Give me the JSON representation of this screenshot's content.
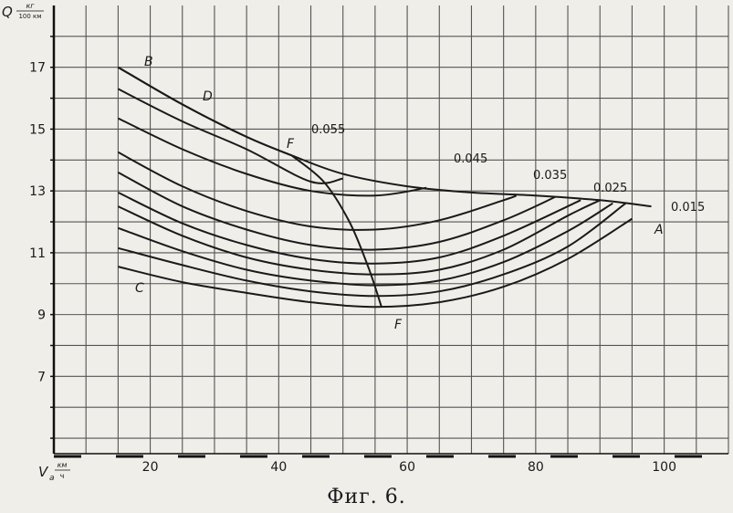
{
  "chart_data": {
    "type": "line",
    "ylabel_main": "Q",
    "ylabel_unit_num": "кг",
    "ylabel_unit_den": "100 км",
    "xlabel_main": "V",
    "xlabel_sub": "a",
    "xlabel_unit_num": "км",
    "xlabel_unit_den": "ч",
    "xlim": [
      5,
      110
    ],
    "ylim": [
      4.5,
      19
    ],
    "x_ticks": [
      20,
      40,
      60,
      80,
      100
    ],
    "y_ticks": [
      7,
      9,
      11,
      13,
      15,
      17
    ],
    "grid": true,
    "point_labels": [
      "B",
      "D",
      "F",
      "A",
      "C",
      "F"
    ],
    "series": [
      {
        "name": "0.015",
        "x": [
          15,
          25,
          35,
          45,
          55,
          65,
          75,
          85,
          95
        ],
        "y": [
          10.55,
          10.05,
          9.7,
          9.4,
          9.25,
          9.4,
          9.9,
          10.8,
          12.1
        ]
      },
      {
        "name": "",
        "x": [
          15,
          25,
          35,
          45,
          55,
          65,
          75,
          85,
          94
        ],
        "y": [
          11.15,
          10.6,
          10.1,
          9.75,
          9.6,
          9.75,
          10.3,
          11.2,
          12.6
        ]
      },
      {
        "name": "",
        "x": [
          15,
          25,
          35,
          45,
          55,
          65,
          75,
          85,
          92
        ],
        "y": [
          11.8,
          11.05,
          10.45,
          10.1,
          9.95,
          10.1,
          10.7,
          11.7,
          12.6
        ]
      },
      {
        "name": "",
        "x": [
          15,
          25,
          35,
          45,
          55,
          65,
          75,
          85,
          90
        ],
        "y": [
          12.5,
          11.55,
          10.85,
          10.45,
          10.3,
          10.45,
          11.1,
          12.2,
          12.7
        ]
      },
      {
        "name": "0.025",
        "x": [
          15,
          25,
          35,
          45,
          55,
          65,
          75,
          87
        ],
        "y": [
          12.95,
          11.95,
          11.25,
          10.8,
          10.65,
          10.85,
          11.55,
          12.7
        ]
      },
      {
        "name": "",
        "x": [
          15,
          25,
          35,
          45,
          55,
          65,
          75,
          83
        ],
        "y": [
          13.6,
          12.5,
          11.75,
          11.25,
          11.1,
          11.35,
          12.05,
          12.8
        ]
      },
      {
        "name": "0.035",
        "x": [
          15,
          25,
          35,
          45,
          55,
          65,
          75,
          77
        ],
        "y": [
          14.25,
          13.15,
          12.35,
          11.85,
          11.75,
          12.05,
          12.7,
          12.85
        ]
      },
      {
        "name": "0.045",
        "x": [
          15,
          25,
          35,
          45,
          55,
          63
        ],
        "y": [
          15.35,
          14.35,
          13.55,
          13.0,
          12.85,
          13.1
        ]
      },
      {
        "name": "",
        "x": [
          15,
          25,
          35,
          45,
          50
        ],
        "y": [
          16.3,
          15.25,
          14.35,
          13.3,
          13.4
        ]
      },
      {
        "name": "0.055",
        "x": [
          15,
          25,
          35,
          42
        ],
        "y": [
          17.0,
          15.8,
          14.75,
          14.15
        ]
      },
      {
        "name": "",
        "x": [
          15,
          25,
          35,
          42,
          50,
          60,
          70,
          80,
          90,
          98
        ],
        "y": [
          17.0,
          15.8,
          14.75,
          14.15,
          13.55,
          13.15,
          12.95,
          12.85,
          12.7,
          12.5
        ]
      },
      {
        "name": "",
        "x": [
          42,
          47,
          51,
          54,
          56
        ],
        "y": [
          14.15,
          13.3,
          12.0,
          10.5,
          9.25
        ]
      }
    ]
  },
  "caption": "Фиг. 6."
}
